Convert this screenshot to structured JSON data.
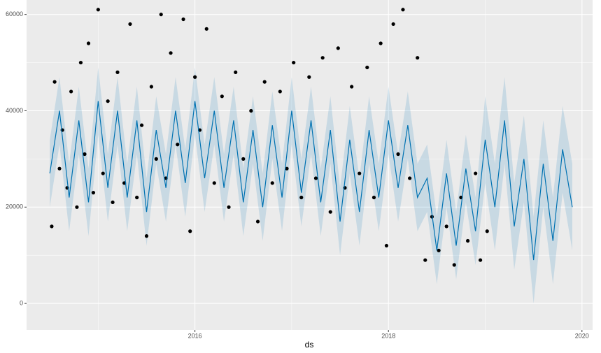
{
  "chart_data": {
    "type": "forecast",
    "xlabel": "ds",
    "xlim": [
      2014.26,
      2020.11
    ],
    "ylim": [
      -5500,
      63000
    ],
    "xticks": [
      2016,
      2018,
      2020
    ],
    "yticks": [
      0,
      20000,
      40000,
      60000
    ],
    "xminor": [
      2015,
      2017,
      2019
    ],
    "yminor": [
      10000,
      30000,
      50000
    ],
    "grid": true,
    "panel_color": "#ebebeb",
    "line_color": "#0072b2",
    "band_color": "#0072b2",
    "point_color": "#000000",
    "x": [
      2014.5,
      2014.6,
      2014.7,
      2014.8,
      2014.9,
      2015.0,
      2015.1,
      2015.2,
      2015.3,
      2015.4,
      2015.5,
      2015.6,
      2015.7,
      2015.8,
      2015.9,
      2016.0,
      2016.1,
      2016.2,
      2016.3,
      2016.4,
      2016.5,
      2016.6,
      2016.7,
      2016.8,
      2016.9,
      2017.0,
      2017.1,
      2017.2,
      2017.3,
      2017.4,
      2017.5,
      2017.6,
      2017.7,
      2017.8,
      2017.9,
      2018.0,
      2018.1,
      2018.2,
      2018.3,
      2018.4,
      2018.5,
      2018.6,
      2018.7,
      2018.8,
      2018.9,
      2019.0,
      2019.1,
      2019.2,
      2019.3,
      2019.4,
      2019.5,
      2019.6,
      2019.7,
      2019.8,
      2019.9
    ],
    "yhat": [
      27000,
      40000,
      22000,
      38000,
      21000,
      42000,
      24000,
      40000,
      22000,
      38000,
      19000,
      36000,
      24000,
      40000,
      25000,
      42000,
      26000,
      40000,
      24000,
      38000,
      21000,
      36000,
      20000,
      37000,
      22000,
      40000,
      23000,
      38000,
      21000,
      36000,
      17000,
      34000,
      19000,
      36000,
      22000,
      38000,
      24000,
      37000,
      22000,
      26000,
      11000,
      27000,
      12000,
      28000,
      15000,
      34000,
      20000,
      38000,
      16000,
      30000,
      9000,
      29000,
      13000,
      32000,
      20000
    ],
    "yhat_lower": [
      20000,
      33000,
      15000,
      31000,
      14000,
      35000,
      17000,
      33000,
      15000,
      31000,
      12000,
      29000,
      17000,
      33000,
      18000,
      35000,
      19000,
      33000,
      17000,
      31000,
      14000,
      29000,
      13000,
      30000,
      15000,
      33000,
      16000,
      31000,
      14000,
      29000,
      10000,
      27000,
      12000,
      29000,
      15000,
      31000,
      17000,
      30000,
      15000,
      19000,
      4000,
      20000,
      5000,
      21000,
      8000,
      25000,
      11000,
      29000,
      7000,
      21000,
      0,
      20000,
      4000,
      23000,
      11000
    ],
    "yhat_upper": [
      34000,
      47000,
      29000,
      45000,
      28000,
      49000,
      31000,
      47000,
      29000,
      45000,
      26000,
      43000,
      31000,
      47000,
      32000,
      49000,
      33000,
      47000,
      31000,
      45000,
      28000,
      43000,
      27000,
      44000,
      29000,
      47000,
      30000,
      45000,
      28000,
      43000,
      24000,
      41000,
      26000,
      43000,
      29000,
      45000,
      31000,
      44000,
      29000,
      33000,
      18000,
      34000,
      19000,
      35000,
      22000,
      43000,
      29000,
      47000,
      25000,
      39000,
      18000,
      38000,
      22000,
      41000,
      29000
    ],
    "points": {
      "x": [
        2014.52,
        2014.55,
        2014.6,
        2014.63,
        2014.68,
        2014.72,
        2014.78,
        2014.82,
        2014.86,
        2014.9,
        2014.95,
        2015.0,
        2015.05,
        2015.1,
        2015.15,
        2015.2,
        2015.27,
        2015.33,
        2015.4,
        2015.45,
        2015.5,
        2015.55,
        2015.6,
        2015.65,
        2015.7,
        2015.75,
        2015.82,
        2015.88,
        2015.95,
        2016.0,
        2016.05,
        2016.12,
        2016.2,
        2016.28,
        2016.35,
        2016.42,
        2016.5,
        2016.58,
        2016.65,
        2016.72,
        2016.8,
        2016.88,
        2016.95,
        2017.02,
        2017.1,
        2017.18,
        2017.25,
        2017.32,
        2017.4,
        2017.48,
        2017.55,
        2017.62,
        2017.7,
        2017.78,
        2017.85,
        2017.92,
        2017.98,
        2018.05,
        2018.1,
        2018.15,
        2018.22,
        2018.3,
        2018.38,
        2018.45,
        2018.52,
        2018.6,
        2018.68,
        2018.75,
        2018.82,
        2018.9,
        2018.95,
        2019.02
      ],
      "y": [
        16000,
        46000,
        28000,
        36000,
        24000,
        44000,
        20000,
        50000,
        31000,
        54000,
        23000,
        61000,
        27000,
        42000,
        21000,
        48000,
        25000,
        58000,
        22000,
        37000,
        14000,
        45000,
        30000,
        60000,
        26000,
        52000,
        33000,
        59000,
        15000,
        47000,
        36000,
        57000,
        25000,
        43000,
        20000,
        48000,
        30000,
        40000,
        17000,
        46000,
        25000,
        44000,
        28000,
        50000,
        22000,
        47000,
        26000,
        51000,
        19000,
        53000,
        24000,
        45000,
        27000,
        49000,
        22000,
        54000,
        12000,
        58000,
        31000,
        61000,
        26000,
        51000,
        9000,
        18000,
        11000,
        16000,
        8000,
        22000,
        13000,
        27000,
        9000,
        15000
      ]
    }
  }
}
